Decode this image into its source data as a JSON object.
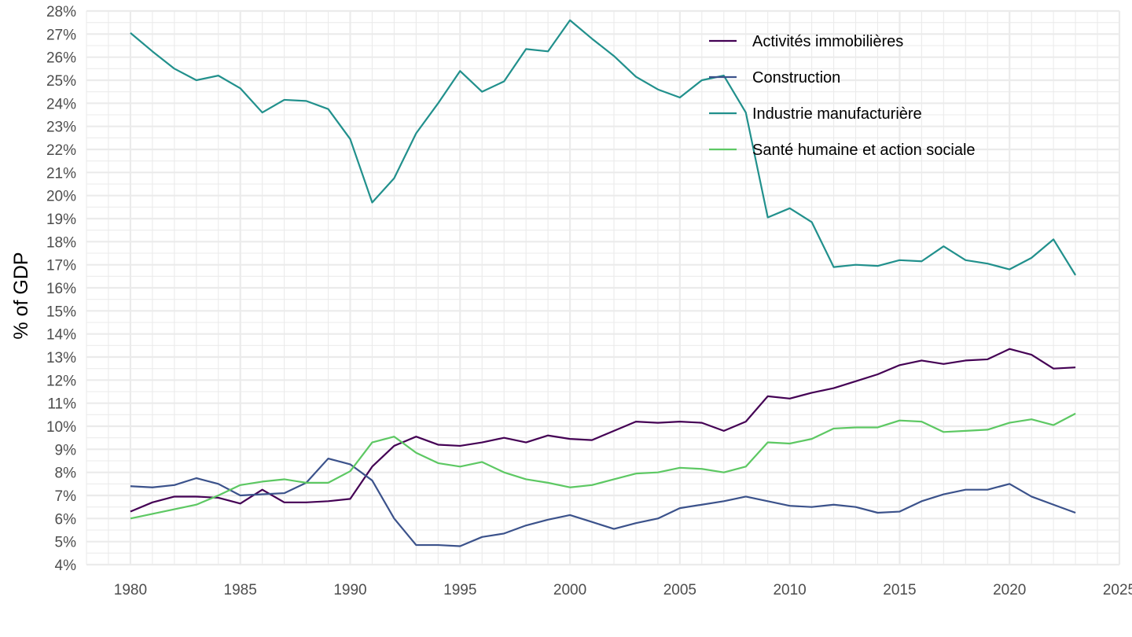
{
  "chart_data": {
    "type": "line",
    "title": "",
    "xlabel": "",
    "ylabel": "% of GDP",
    "xlim": [
      1978,
      2025
    ],
    "ylim": [
      4,
      28
    ],
    "x_ticks": [
      1980,
      1985,
      1990,
      1995,
      2000,
      2005,
      2010,
      2015,
      2020,
      2025
    ],
    "x_tick_labels": [
      "1980",
      "1985",
      "1990",
      "1995",
      "2000",
      "2005",
      "2010",
      "2015",
      "2020",
      "2025"
    ],
    "y_ticks": [
      4,
      5,
      6,
      7,
      8,
      9,
      10,
      11,
      12,
      13,
      14,
      15,
      16,
      17,
      18,
      19,
      20,
      21,
      22,
      23,
      24,
      25,
      26,
      27,
      28
    ],
    "y_tick_labels": [
      "4%",
      "5%",
      "6%",
      "7%",
      "8%",
      "9%",
      "10%",
      "11%",
      "12%",
      "13%",
      "14%",
      "15%",
      "16%",
      "17%",
      "18%",
      "19%",
      "20%",
      "21%",
      "22%",
      "23%",
      "24%",
      "25%",
      "26%",
      "27%",
      "28%"
    ],
    "grid": true,
    "legend_position": "top-right",
    "x": [
      1980,
      1981,
      1982,
      1983,
      1984,
      1985,
      1986,
      1987,
      1988,
      1989,
      1990,
      1991,
      1992,
      1993,
      1994,
      1995,
      1996,
      1997,
      1998,
      1999,
      2000,
      2001,
      2002,
      2003,
      2004,
      2005,
      2006,
      2007,
      2008,
      2009,
      2010,
      2011,
      2012,
      2013,
      2014,
      2015,
      2016,
      2017,
      2018,
      2019,
      2020,
      2021,
      2022,
      2023
    ],
    "series": [
      {
        "name": "Activités immobilières",
        "color": "#440154",
        "values": [
          6.3,
          6.7,
          6.95,
          6.95,
          6.9,
          6.65,
          7.25,
          6.7,
          6.7,
          6.75,
          6.85,
          8.25,
          9.15,
          9.55,
          9.2,
          9.15,
          9.3,
          9.5,
          9.3,
          9.6,
          9.45,
          9.4,
          9.8,
          10.2,
          10.15,
          10.2,
          10.15,
          9.8,
          10.2,
          11.3,
          11.2,
          11.45,
          11.65,
          11.95,
          12.25,
          12.65,
          12.85,
          12.7,
          12.85,
          12.9,
          13.35,
          13.1,
          12.5,
          12.55
        ]
      },
      {
        "name": "Construction",
        "color": "#3b528b",
        "values": [
          7.4,
          7.35,
          7.45,
          7.75,
          7.5,
          7.0,
          7.05,
          7.1,
          7.55,
          8.6,
          8.35,
          7.65,
          6.0,
          4.85,
          4.85,
          4.8,
          5.2,
          5.35,
          5.7,
          5.95,
          6.15,
          5.85,
          5.55,
          5.8,
          6.0,
          6.45,
          6.6,
          6.75,
          6.95,
          6.75,
          6.55,
          6.5,
          6.6,
          6.5,
          6.25,
          6.3,
          6.75,
          7.05,
          7.25,
          7.25,
          7.5,
          6.95,
          6.6,
          6.25
        ]
      },
      {
        "name": "Industrie manufacturière",
        "color": "#21908c",
        "values": [
          27.05,
          26.25,
          25.5,
          25.0,
          25.2,
          24.65,
          23.6,
          24.15,
          24.1,
          23.75,
          22.45,
          19.7,
          20.75,
          22.7,
          24.0,
          25.4,
          24.5,
          24.95,
          26.35,
          26.25,
          27.6,
          26.8,
          26.05,
          25.15,
          24.6,
          24.25,
          25.0,
          25.2,
          23.6,
          19.05,
          19.45,
          18.85,
          16.9,
          17.0,
          16.95,
          17.2,
          17.15,
          17.8,
          17.2,
          17.05,
          16.8,
          17.3,
          18.1,
          16.55
        ]
      },
      {
        "name": "Santé humaine et action sociale",
        "color": "#5dc863",
        "values": [
          6.0,
          6.2,
          6.4,
          6.6,
          7.0,
          7.45,
          7.6,
          7.7,
          7.55,
          7.55,
          8.05,
          9.3,
          9.55,
          8.85,
          8.4,
          8.25,
          8.45,
          8.0,
          7.7,
          7.55,
          7.35,
          7.45,
          7.7,
          7.95,
          8.0,
          8.2,
          8.15,
          8.0,
          8.25,
          9.3,
          9.25,
          9.45,
          9.9,
          9.95,
          9.95,
          10.25,
          10.2,
          9.75,
          9.8,
          9.85,
          10.15,
          10.3,
          10.05,
          10.55
        ]
      }
    ]
  }
}
